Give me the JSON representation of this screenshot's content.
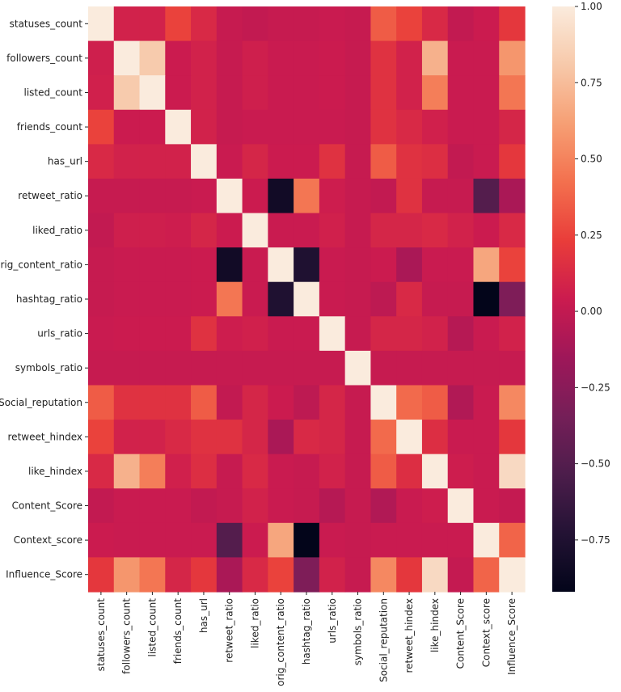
{
  "chart_data": {
    "type": "heatmap",
    "labels": [
      "statuses_count",
      "followers_count",
      "listed_count",
      "friends_count",
      "has_url",
      "retweet_ratio",
      "liked_ratio",
      "orig_content_ratio",
      "hashtag_ratio",
      "urls_ratio",
      "symbols_ratio",
      "Social_reputation",
      "retweet_hindex",
      "like_hindex",
      "Content_Score",
      "Context_score",
      "Influence_Score"
    ],
    "row_labels_shown": [
      "statuses_count",
      "followers_count",
      "listed_count",
      "friends_count",
      "has_url",
      "retweet_ratio",
      "liked_ratio",
      "rig_content_ratio",
      "hashtag_ratio",
      "urls_ratio",
      "symbols_ratio",
      "Social_reputation",
      "retweet_hindex",
      "like_hindex",
      "Content_Score",
      "Context_score",
      "Influence_Score"
    ],
    "values": [
      [
        1.0,
        0.08,
        0.08,
        0.25,
        0.12,
        0.02,
        0.0,
        0.02,
        0.02,
        0.03,
        0.02,
        0.35,
        0.25,
        0.12,
        0.0,
        0.04,
        0.2
      ],
      [
        0.06,
        1.0,
        0.82,
        0.04,
        0.08,
        0.02,
        0.06,
        0.03,
        0.03,
        0.04,
        0.02,
        0.17,
        0.08,
        0.7,
        0.03,
        0.03,
        0.58
      ],
      [
        0.07,
        0.82,
        1.0,
        0.04,
        0.08,
        0.02,
        0.06,
        0.03,
        0.03,
        0.04,
        0.02,
        0.17,
        0.08,
        0.48,
        0.03,
        0.03,
        0.45
      ],
      [
        0.25,
        0.04,
        0.04,
        1.0,
        0.08,
        0.02,
        0.03,
        0.03,
        0.03,
        0.03,
        0.02,
        0.17,
        0.12,
        0.07,
        0.03,
        0.03,
        0.1
      ],
      [
        0.12,
        0.08,
        0.08,
        0.08,
        1.0,
        0.03,
        0.1,
        0.04,
        0.04,
        0.17,
        0.02,
        0.35,
        0.17,
        0.15,
        0.0,
        0.03,
        0.2
      ],
      [
        0.02,
        0.02,
        0.02,
        0.02,
        0.03,
        1.0,
        0.04,
        -0.83,
        0.45,
        0.05,
        0.02,
        0.0,
        0.17,
        0.02,
        0.02,
        -0.5,
        -0.1
      ],
      [
        0.0,
        0.06,
        0.06,
        0.05,
        0.1,
        0.04,
        1.0,
        0.03,
        0.03,
        0.07,
        0.02,
        0.1,
        0.1,
        0.12,
        0.08,
        0.04,
        0.12
      ],
      [
        0.02,
        0.03,
        0.03,
        0.03,
        0.04,
        -0.83,
        0.03,
        1.0,
        -0.75,
        0.03,
        0.02,
        0.04,
        -0.1,
        0.03,
        0.03,
        0.65,
        0.25
      ],
      [
        0.02,
        0.03,
        0.03,
        0.03,
        0.04,
        0.45,
        0.03,
        -0.75,
        1.0,
        0.03,
        0.02,
        -0.02,
        0.12,
        0.02,
        0.02,
        -0.92,
        -0.3
      ],
      [
        0.03,
        0.04,
        0.04,
        0.04,
        0.17,
        0.05,
        0.07,
        0.03,
        0.03,
        1.0,
        0.02,
        0.1,
        0.1,
        0.08,
        -0.05,
        0.03,
        0.08
      ],
      [
        0.02,
        0.02,
        0.02,
        0.02,
        0.02,
        0.02,
        0.02,
        0.02,
        0.02,
        0.02,
        1.0,
        0.02,
        0.02,
        0.02,
        0.02,
        0.02,
        0.02
      ],
      [
        0.35,
        0.17,
        0.17,
        0.17,
        0.35,
        0.0,
        0.1,
        0.04,
        -0.02,
        0.1,
        0.02,
        1.0,
        0.4,
        0.35,
        -0.07,
        0.03,
        0.52
      ],
      [
        0.25,
        0.08,
        0.08,
        0.12,
        0.17,
        0.17,
        0.1,
        -0.1,
        0.12,
        0.1,
        0.02,
        0.4,
        1.0,
        0.15,
        0.03,
        0.03,
        0.2
      ],
      [
        0.12,
        0.7,
        0.48,
        0.07,
        0.15,
        0.02,
        0.12,
        0.03,
        0.02,
        0.08,
        0.02,
        0.35,
        0.15,
        1.0,
        0.05,
        0.03,
        0.9
      ],
      [
        0.0,
        0.03,
        0.03,
        0.03,
        0.0,
        0.02,
        0.08,
        0.03,
        0.02,
        -0.05,
        0.02,
        -0.07,
        0.03,
        0.05,
        1.0,
        0.03,
        0.01
      ],
      [
        0.04,
        0.03,
        0.03,
        0.03,
        0.03,
        -0.5,
        0.04,
        0.65,
        -0.92,
        0.03,
        0.02,
        0.03,
        0.03,
        0.03,
        0.03,
        1.0,
        0.38
      ],
      [
        0.2,
        0.58,
        0.45,
        0.1,
        0.2,
        -0.1,
        0.12,
        0.25,
        -0.3,
        0.08,
        0.02,
        0.52,
        0.2,
        0.9,
        0.01,
        0.38,
        1.0
      ]
    ],
    "colorbar": {
      "range": [
        -0.92,
        1.0
      ],
      "ticks": [
        1.0,
        0.75,
        0.5,
        0.25,
        0.0,
        -0.25,
        -0.5,
        -0.75
      ],
      "tick_labels": [
        "1.00",
        "0.75",
        "0.50",
        "0.25",
        "0.00",
        "−0.25",
        "−0.50",
        "−0.75"
      ],
      "colormap": "rocket"
    },
    "title": "",
    "xlabel": "",
    "ylabel": ""
  }
}
